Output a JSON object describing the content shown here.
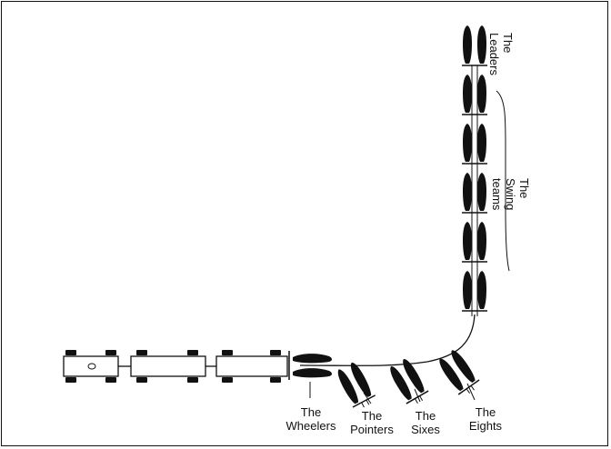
{
  "labels": {
    "leaders": [
      "The",
      "Leaders"
    ],
    "swing": [
      "The",
      "Swing",
      "teams"
    ],
    "wheelers": [
      "The",
      "Wheelers"
    ],
    "pointers": [
      "The",
      "Pointers"
    ],
    "sixes": [
      "The",
      "Sixes"
    ],
    "eights": [
      "The",
      "Eights"
    ]
  },
  "colors": {
    "ink": "#111111",
    "paper": "#ffffff"
  }
}
